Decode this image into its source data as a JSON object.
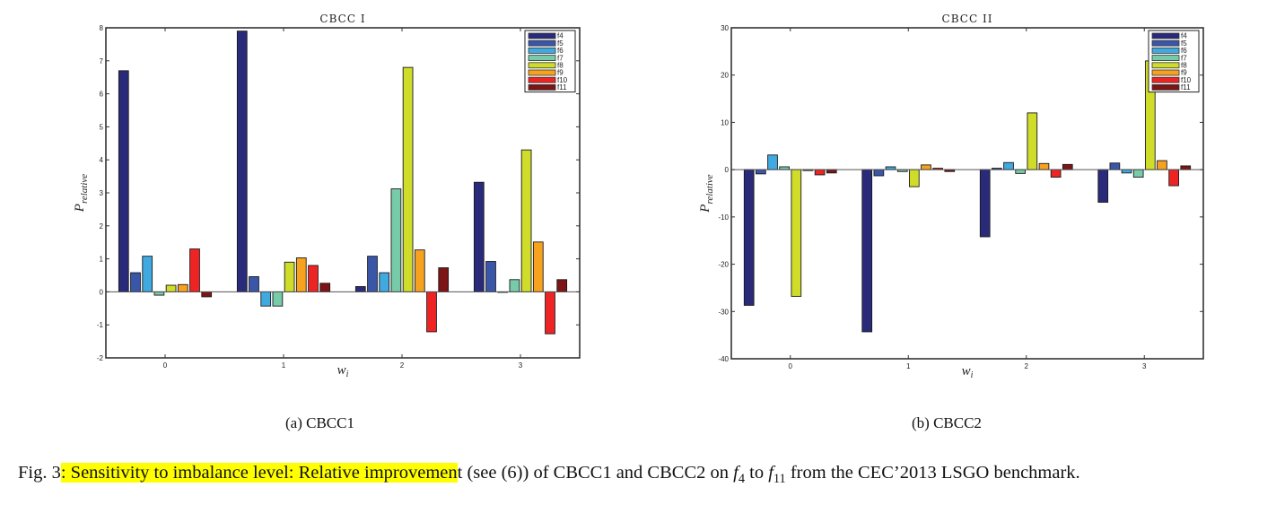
{
  "chart_data": [
    {
      "type": "bar",
      "title": "CBCC I",
      "xlabel": "w_i",
      "ylabel": "P_relative",
      "xlabel_main": "w",
      "xlabel_sub": "i",
      "ylabel_main": "P",
      "ylabel_sub": "relative",
      "categories": [
        "0",
        "1",
        "2",
        "3"
      ],
      "ylim": [
        -2,
        8
      ],
      "yticks": [
        -2,
        -1,
        0,
        1,
        2,
        3,
        4,
        5,
        6,
        7,
        8
      ],
      "legend_position": "top-right",
      "grid": false,
      "series": [
        {
          "name": "f4",
          "color": "#2a2a7a",
          "values": [
            6.7,
            7.9,
            0.16,
            3.32
          ]
        },
        {
          "name": "f5",
          "color": "#3a56a8",
          "values": [
            0.58,
            0.46,
            1.08,
            0.92
          ]
        },
        {
          "name": "f6",
          "color": "#3fa9e0",
          "values": [
            1.08,
            -0.43,
            0.58,
            0.0
          ]
        },
        {
          "name": "f7",
          "color": "#78cba8",
          "values": [
            -0.1,
            -0.43,
            3.12,
            0.37
          ]
        },
        {
          "name": "f8",
          "color": "#cfdc2a",
          "values": [
            0.2,
            0.9,
            6.8,
            4.3
          ]
        },
        {
          "name": "f9",
          "color": "#f7a21f",
          "values": [
            0.22,
            1.03,
            1.27,
            1.51
          ]
        },
        {
          "name": "f10",
          "color": "#ee2424",
          "values": [
            1.3,
            0.8,
            -1.21,
            -1.27
          ]
        },
        {
          "name": "f11",
          "color": "#7d1416",
          "values": [
            -0.15,
            0.26,
            0.73,
            0.37
          ]
        }
      ]
    },
    {
      "type": "bar",
      "title": "CBCC II",
      "xlabel": "w_i",
      "ylabel": "P_relative",
      "xlabel_main": "w",
      "xlabel_sub": "i",
      "ylabel_main": "P",
      "ylabel_sub": "relative",
      "categories": [
        "0",
        "1",
        "2",
        "3"
      ],
      "ylim": [
        -40,
        30
      ],
      "yticks": [
        -40,
        -30,
        -20,
        -10,
        0,
        10,
        20,
        30
      ],
      "legend_position": "top-right",
      "grid": false,
      "series": [
        {
          "name": "f4",
          "color": "#2a2a7a",
          "values": [
            -28.7,
            -34.3,
            -14.2,
            -6.9
          ]
        },
        {
          "name": "f5",
          "color": "#3a56a8",
          "values": [
            -0.9,
            -1.3,
            0.3,
            1.4
          ]
        },
        {
          "name": "f6",
          "color": "#3fa9e0",
          "values": [
            3.1,
            0.6,
            1.5,
            -0.7
          ]
        },
        {
          "name": "f7",
          "color": "#78cba8",
          "values": [
            0.6,
            -0.4,
            -0.8,
            -1.6
          ]
        },
        {
          "name": "f8",
          "color": "#cfdc2a",
          "values": [
            -26.8,
            -3.6,
            12.0,
            23.0
          ]
        },
        {
          "name": "f9",
          "color": "#f7a21f",
          "values": [
            -0.2,
            1.0,
            1.3,
            1.9
          ]
        },
        {
          "name": "f10",
          "color": "#ee2424",
          "values": [
            -1.1,
            0.3,
            -1.6,
            -3.4
          ]
        },
        {
          "name": "f11",
          "color": "#7d1416",
          "values": [
            -0.7,
            -0.4,
            1.1,
            0.8
          ]
        }
      ]
    }
  ],
  "subcaptions": [
    "(a) CBCC1",
    "(b) CBCC2"
  ],
  "caption": {
    "prefix": "Fig. 3",
    "highlighted": ": Sensitivity to imbalance level: Relative improvemen",
    "part1": "t (see (6)) of CBCC1 and CBCC2 on ",
    "f_start_main": "f",
    "f_start_sub": "4",
    "to": " to ",
    "f_end_main": "f",
    "f_end_sub": "11",
    "part2": " from the CEC’2013 LSGO benchmark.",
    "highlight_color": "#ffff00"
  }
}
